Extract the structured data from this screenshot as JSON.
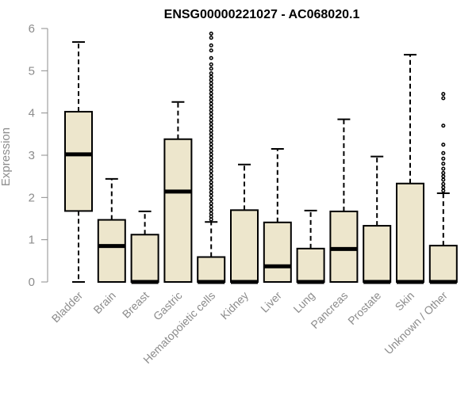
{
  "chart_data": {
    "type": "box",
    "title": "ENSG00000221027 - AC068020.1",
    "xlabel": "",
    "ylabel": "Expression",
    "ylim": [
      0,
      6
    ],
    "yticks": [
      0,
      1,
      2,
      3,
      4,
      5,
      6
    ],
    "grid": false,
    "legend": "none",
    "categories": [
      "Bladder",
      "Brain",
      "Breast",
      "Gastric",
      "Hematopoietic cells",
      "Kidney",
      "Liver",
      "Lung",
      "Pancreas",
      "Prostate",
      "Skin",
      "Unknown / Other"
    ],
    "boxes": [
      {
        "whisker_low": 0,
        "q1": 1.68,
        "median": 3.02,
        "q3": 4.03,
        "whisker_high": 5.68,
        "outliers": []
      },
      {
        "whisker_low": 0,
        "q1": 0,
        "median": 0.85,
        "q3": 1.47,
        "whisker_high": 2.44,
        "outliers": []
      },
      {
        "whisker_low": 0,
        "q1": 0,
        "median": 0,
        "q3": 1.12,
        "whisker_high": 1.67,
        "outliers": []
      },
      {
        "whisker_low": 0,
        "q1": 0,
        "median": 2.14,
        "q3": 3.38,
        "whisker_high": 4.26,
        "outliers": []
      },
      {
        "whisker_low": 0,
        "q1": 0,
        "median": 0,
        "q3": 0.59,
        "whisker_high": 1.42,
        "outliers": [
          1.48,
          1.55,
          1.62,
          1.7,
          1.78,
          1.86,
          1.95,
          2.04,
          2.12,
          2.2,
          2.28,
          2.36,
          2.45,
          2.53,
          2.62,
          2.7,
          2.78,
          2.86,
          2.94,
          3.02,
          3.1,
          3.18,
          3.26,
          3.34,
          3.42,
          3.5,
          3.58,
          3.66,
          3.74,
          3.82,
          3.9,
          3.98,
          4.06,
          4.14,
          4.22,
          4.3,
          4.38,
          4.46,
          4.54,
          4.62,
          4.7,
          4.78,
          4.86,
          4.94,
          5.05,
          5.15,
          5.3,
          5.48,
          5.6,
          5.78,
          5.88
        ]
      },
      {
        "whisker_low": 0,
        "q1": 0,
        "median": 0,
        "q3": 1.7,
        "whisker_high": 2.78,
        "outliers": []
      },
      {
        "whisker_low": 0,
        "q1": 0,
        "median": 0.37,
        "q3": 1.41,
        "whisker_high": 3.15,
        "outliers": []
      },
      {
        "whisker_low": 0,
        "q1": 0,
        "median": 0,
        "q3": 0.79,
        "whisker_high": 1.69,
        "outliers": []
      },
      {
        "whisker_low": 0,
        "q1": 0,
        "median": 0.78,
        "q3": 1.67,
        "whisker_high": 3.85,
        "outliers": []
      },
      {
        "whisker_low": 0,
        "q1": 0,
        "median": 0,
        "q3": 1.33,
        "whisker_high": 2.97,
        "outliers": []
      },
      {
        "whisker_low": 0,
        "q1": 0,
        "median": 0,
        "q3": 2.33,
        "whisker_high": 5.38,
        "outliers": []
      },
      {
        "whisker_low": 0,
        "q1": 0,
        "median": 0,
        "q3": 0.86,
        "whisker_high": 2.1,
        "outliers": [
          2.16,
          2.24,
          2.32,
          2.42,
          2.5,
          2.58,
          2.68,
          2.8,
          2.92,
          3.05,
          3.25,
          3.7,
          4.35,
          4.45
        ]
      }
    ],
    "box_fill": "#ede6cc",
    "box_stroke": "#000000",
    "median_color": "#000000",
    "axis_color": "#8c8c8c"
  }
}
